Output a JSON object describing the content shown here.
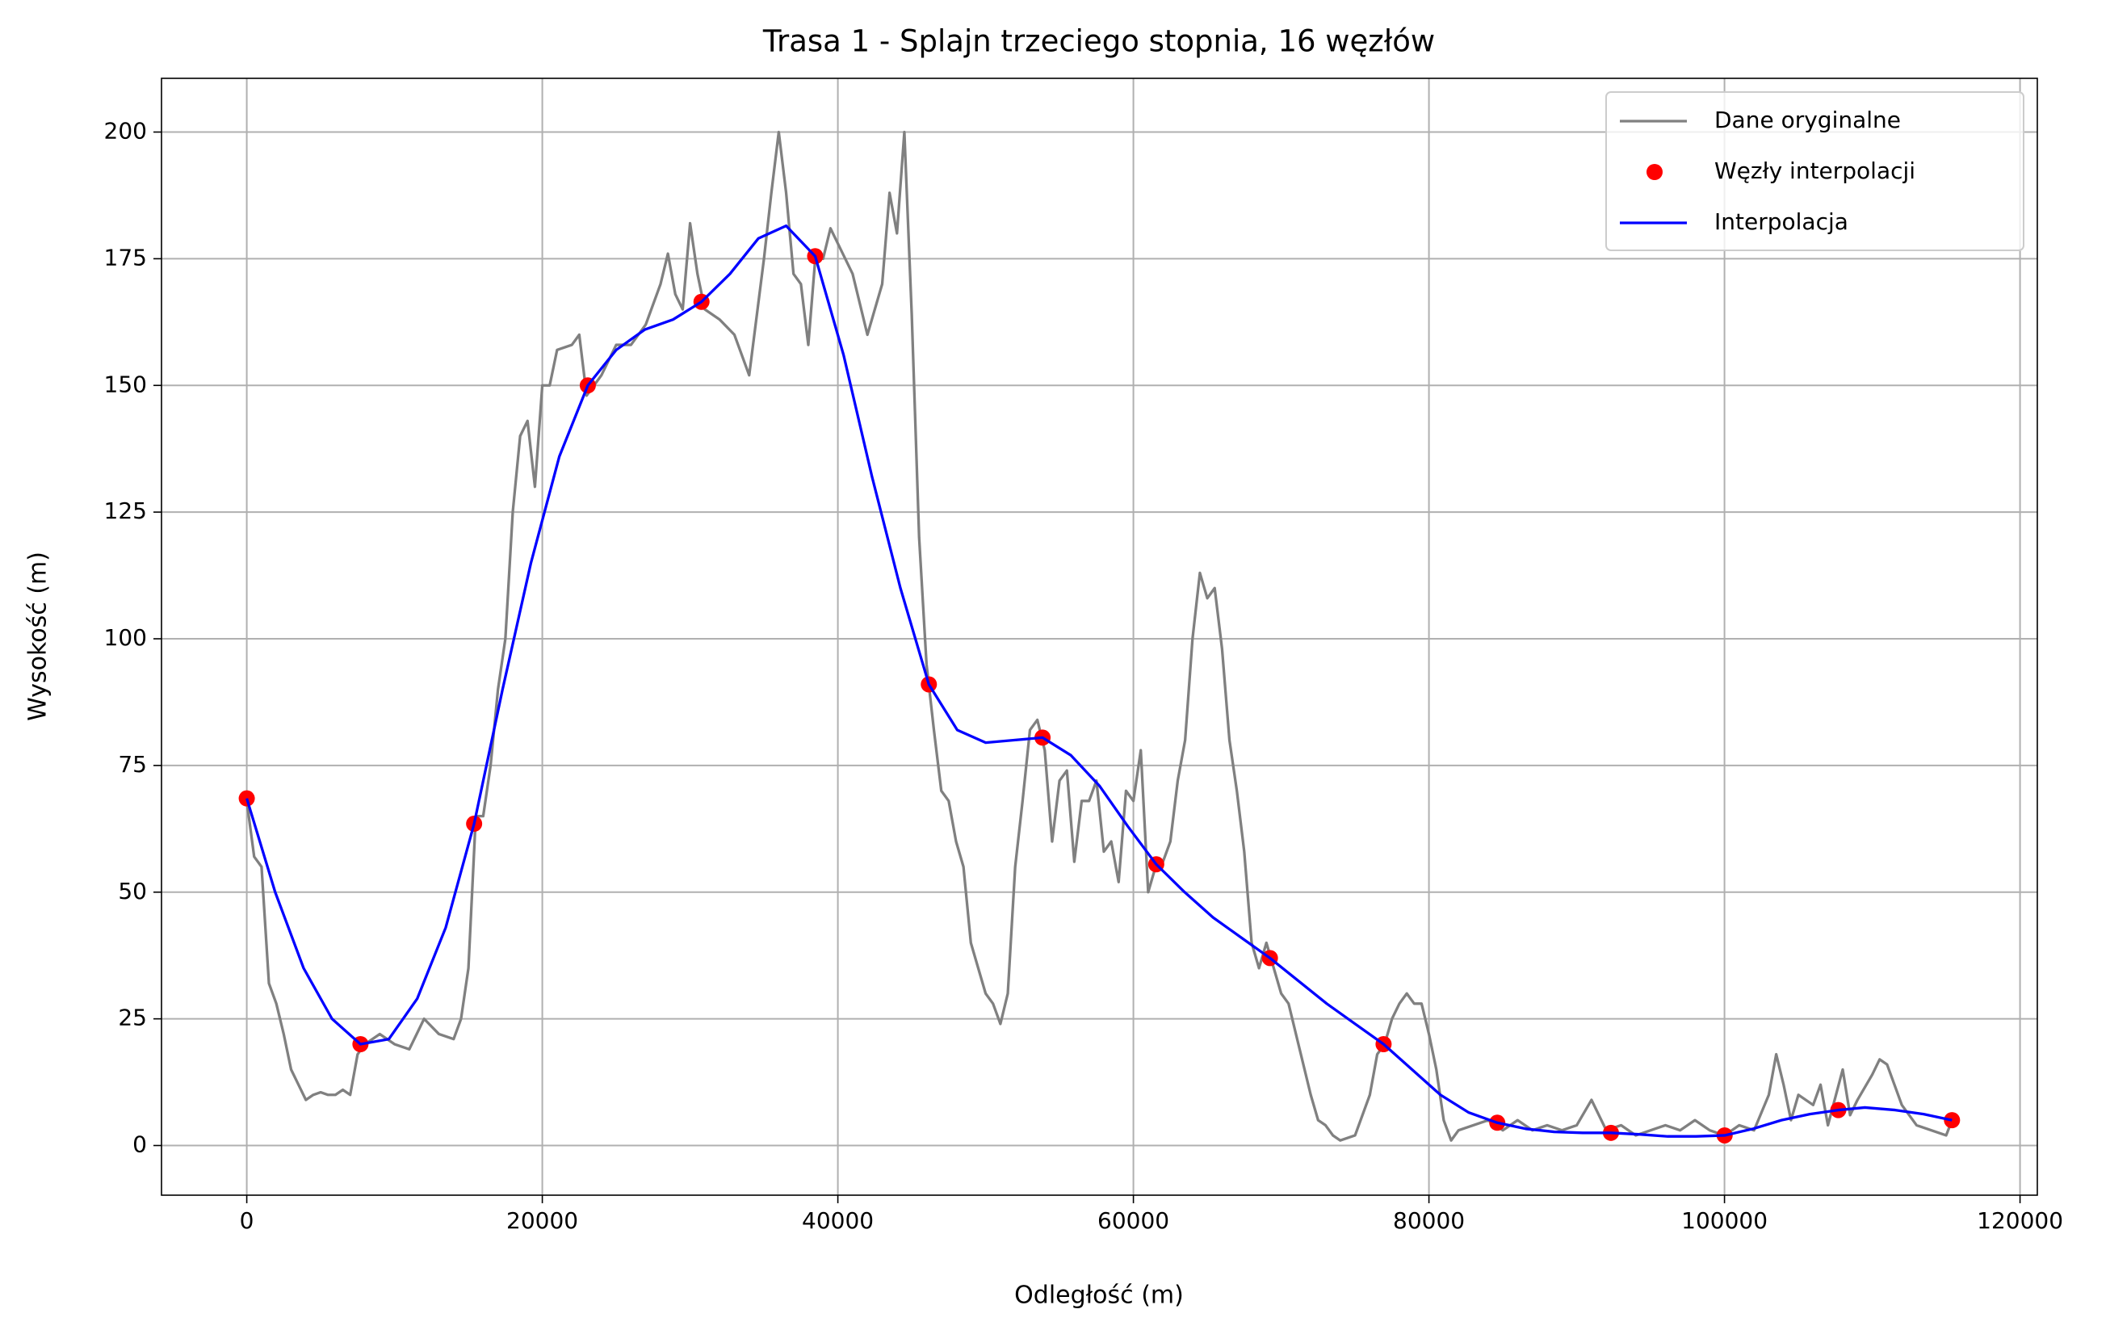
{
  "chart_data": {
    "type": "line",
    "title": "Trasa 1 - Splajn trzeciego stopnia, 16 węzłów",
    "xlabel": "Odległość (m)",
    "ylabel": "Wysokość (m)",
    "xlim": [
      -5770,
      121170
    ],
    "ylim": [
      -9.8,
      210.6
    ],
    "xticks": [
      0,
      20000,
      40000,
      60000,
      80000,
      100000,
      120000
    ],
    "yticks": [
      0,
      25,
      50,
      75,
      100,
      125,
      150,
      175,
      200
    ],
    "grid": true,
    "legend": "upper right",
    "series": [
      {
        "name": "Dane oryginalne",
        "color": "#808080",
        "mode": "line",
        "x": [
          0,
          500,
          1000,
          1500,
          2000,
          2500,
          3000,
          3500,
          4000,
          4500,
          5000,
          5500,
          6000,
          6500,
          7000,
          7500,
          8000,
          8500,
          9000,
          10000,
          11000,
          12000,
          13000,
          14000,
          14500,
          15000,
          15500,
          16000,
          16500,
          17000,
          17500,
          18000,
          18500,
          19000,
          19500,
          20000,
          20500,
          21000,
          22000,
          22500,
          23000,
          23500,
          24000,
          25000,
          26000,
          27000,
          28000,
          28500,
          29000,
          29500,
          30000,
          30500,
          31000,
          32000,
          33000,
          34000,
          35000,
          35500,
          36000,
          36500,
          37000,
          37500,
          38000,
          38500,
          39000,
          39500,
          40000,
          41000,
          42000,
          43000,
          43500,
          44000,
          44500,
          45000,
          45500,
          46000,
          46500,
          47000,
          47500,
          48000,
          48500,
          49000,
          49500,
          50000,
          50500,
          51000,
          51500,
          52000,
          52500,
          53000,
          53500,
          54000,
          54500,
          55000,
          55500,
          56000,
          56500,
          57000,
          57500,
          58000,
          58500,
          59000,
          59500,
          60000,
          60500,
          61000,
          61500,
          62000,
          62500,
          63000,
          63500,
          64000,
          64500,
          65000,
          65500,
          66000,
          66500,
          67000,
          67500,
          68000,
          68500,
          69000,
          69500,
          70000,
          70500,
          71000,
          72000,
          72500,
          73000,
          73500,
          74000,
          75000,
          76000,
          76500,
          77000,
          77500,
          78000,
          78500,
          79000,
          79500,
          80000,
          80500,
          81000,
          81500,
          82000,
          83000,
          84000,
          85000,
          86000,
          87000,
          88000,
          89000,
          90000,
          91000,
          92000,
          93000,
          94000,
          95000,
          96000,
          97000,
          98000,
          99000,
          100000,
          101000,
          102000,
          103000,
          103500,
          104000,
          104500,
          105000,
          106000,
          106500,
          107000,
          108000,
          108500,
          109000,
          110000,
          110500,
          111000,
          111500,
          112000,
          113000,
          114000,
          115000,
          115400
        ],
        "values": [
          68,
          57,
          55,
          32,
          28,
          22,
          15,
          12,
          9,
          10,
          10.5,
          10,
          10,
          11,
          10,
          18,
          20,
          21,
          22,
          20,
          19,
          25,
          22,
          21,
          25,
          35,
          65,
          65,
          75,
          90,
          100,
          125,
          140,
          143,
          130,
          150,
          150,
          157,
          158,
          160,
          148,
          150,
          152,
          158,
          158,
          162,
          170,
          176,
          168,
          165,
          182,
          172,
          165,
          163,
          160,
          152,
          175,
          188,
          200,
          188,
          172,
          170,
          158,
          176,
          175,
          181,
          178,
          172,
          160,
          170,
          188,
          180,
          200,
          164,
          120,
          95,
          82,
          70,
          68,
          60,
          55,
          40,
          35,
          30,
          28,
          24,
          30,
          55,
          68,
          82,
          84,
          78,
          60,
          72,
          74,
          56,
          68,
          68,
          72,
          58,
          60,
          52,
          70,
          68,
          78,
          50,
          55,
          56,
          60,
          72,
          80,
          100,
          113,
          108,
          110,
          98,
          80,
          70,
          58,
          40,
          35,
          40,
          35,
          30,
          28,
          22,
          10,
          5,
          4,
          2,
          1,
          2,
          10,
          18,
          20,
          25,
          28,
          30,
          28,
          28,
          22,
          15,
          5,
          1,
          3,
          4,
          5,
          3,
          5,
          3,
          4,
          3,
          4,
          9,
          3,
          4,
          2,
          3,
          4,
          3,
          5,
          3,
          2,
          4,
          3,
          10,
          18,
          12,
          5,
          10,
          8,
          12,
          4,
          15,
          6,
          9,
          14,
          17,
          16,
          12,
          8,
          4,
          3,
          2,
          5
        ]
      },
      {
        "name": "Węzły interpolacji",
        "color": "#ff0000",
        "mode": "markers",
        "x": [
          0,
          7693,
          15386,
          23079,
          30772,
          38465,
          46158,
          53851,
          61544,
          69237,
          76930,
          84623,
          92316,
          100009,
          107702,
          115395
        ],
        "values": [
          68.5,
          20,
          63.5,
          150,
          166.5,
          175.5,
          91,
          80.5,
          55.5,
          37,
          20,
          4.5,
          2.5,
          2,
          7,
          5
        ]
      },
      {
        "name": "Interpolacja",
        "color": "#0000ff",
        "mode": "line",
        "x": [
          0,
          1923,
          3846,
          5770,
          7693,
          9616,
          11539,
          13462,
          15386,
          17309,
          19232,
          21155,
          23079,
          25002,
          26925,
          28848,
          30772,
          32695,
          34618,
          36500,
          38465,
          40388,
          42311,
          44234,
          46158,
          48081,
          50004,
          51927,
          53851,
          55774,
          57697,
          59620,
          61544,
          63467,
          65390,
          67313,
          69237,
          71160,
          73083,
          75006,
          76930,
          78853,
          80776,
          82699,
          84623,
          86546,
          88469,
          90392,
          92316,
          94239,
          96162,
          98085,
          100009,
          101932,
          103855,
          105778,
          107702,
          109500,
          111548,
          113471,
          115395
        ],
        "values": [
          68.5,
          50,
          35,
          25,
          20,
          21,
          29,
          43,
          63.5,
          90,
          115,
          136,
          150,
          157,
          161,
          163,
          166.5,
          172,
          179,
          181.5,
          175.5,
          156,
          132,
          110,
          91,
          82,
          79.5,
          80,
          80.5,
          77,
          71,
          63,
          55.5,
          50,
          45,
          41,
          37,
          32.5,
          28,
          24,
          20,
          15,
          10,
          6.5,
          4.5,
          3.3,
          2.7,
          2.5,
          2.5,
          2.2,
          1.8,
          1.8,
          2,
          3.3,
          5,
          6.2,
          7,
          7.5,
          7,
          6.2,
          5
        ]
      }
    ]
  }
}
